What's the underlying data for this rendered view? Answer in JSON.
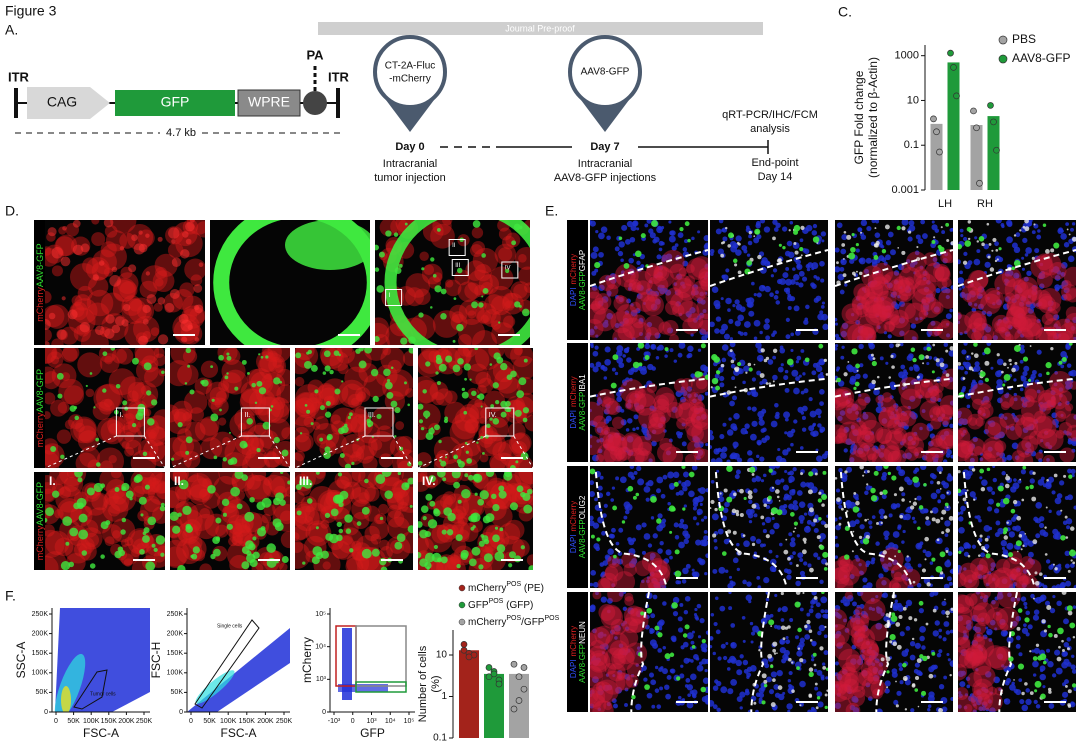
{
  "figure_title": "Figure 3",
  "watermark": "Journal Pre-proof",
  "panel_a": {
    "label": "A.",
    "construct": {
      "itr_left": "ITR",
      "cag": "CAG",
      "gfp": "GFP",
      "wpre": "WPRE",
      "pa": "PA",
      "itr_right": "ITR",
      "size": "4.7 kb"
    },
    "timeline": {
      "tumor_pin": [
        "CT-2A-Fluc",
        "-mCherry"
      ],
      "aav_pin": "AAV8-GFP",
      "day0": "Day 0",
      "day0_desc": [
        "Intracranial",
        "tumor injection"
      ],
      "day7": "Day 7",
      "day7_desc": [
        "Intracranial",
        "AAV8-GFP injections"
      ],
      "analysis": [
        "qRT-PCR/IHC/FCM",
        "analysis"
      ],
      "endpoint": [
        "End-point",
        "Day 14"
      ]
    }
  },
  "panel_c": {
    "label": "C."
  },
  "panel_d": {
    "label": "D.",
    "channel_labels": [
      "mCherry",
      "AAV8-GFP"
    ],
    "roi_labels": [
      "I",
      "II",
      "III",
      "IV"
    ],
    "inset_labels": [
      "I.",
      "II.",
      "III.",
      "IV."
    ]
  },
  "panel_e": {
    "label": "E.",
    "channels": [
      "DAPI",
      "mCherry",
      "AAV8-GFP"
    ],
    "markers": [
      "GFAP",
      "IBA1",
      "OLIG2",
      "NEUN"
    ]
  },
  "panel_f": {
    "label": "F.",
    "flow_plots": [
      {
        "ylabel": "SSC-A",
        "xlabel": "FSC-A",
        "yticks": [
          "250K",
          "200K",
          "150K",
          "100K",
          "50K",
          "0"
        ],
        "xticks": [
          "0",
          "50K",
          "100K",
          "150K",
          "200K",
          "250K"
        ],
        "gate": "Tumor cells"
      },
      {
        "ylabel": "FSC-H",
        "xlabel": "FSC-A",
        "yticks": [
          "250K",
          "200K",
          "150K",
          "100K",
          "50K",
          "0"
        ],
        "xticks": [
          "0",
          "50K",
          "100K",
          "150K",
          "200K",
          "250K"
        ],
        "gate": "Single cells"
      },
      {
        "ylabel": "mCherry",
        "xlabel": "GFP",
        "yticks": [
          "10⁵",
          "10⁴",
          "10³",
          "0"
        ],
        "xticks": [
          "-10³",
          "0",
          "10³",
          "10⁴",
          "10⁵"
        ]
      }
    ]
  },
  "chart_data": [
    {
      "type": "bar",
      "log_y": true,
      "ylabel": [
        "GFP Fold change",
        "(normalized to β-Actin)"
      ],
      "categories": [
        "LH",
        "RH"
      ],
      "ylim": [
        0.001,
        3000
      ],
      "yticks": [
        0.001,
        0.1,
        10,
        1000
      ],
      "legend": "upper right",
      "series": [
        {
          "name": "PBS",
          "color": "#a3a3a3",
          "values": [
            0.9,
            0.8
          ],
          "points": [
            [
              1.5,
              0.4,
              0.05
            ],
            [
              3.4,
              0.6,
              0.002
            ]
          ]
        },
        {
          "name": "AAV8-GFP",
          "color": "#1f9a3a",
          "values": [
            500,
            2
          ],
          "points": [
            [
              1300,
              300,
              16
            ],
            [
              6,
              1.1,
              0.06
            ]
          ]
        }
      ]
    },
    {
      "type": "bar",
      "log_y": true,
      "ylabel": [
        "Number of cells",
        "(%)"
      ],
      "categories": [
        null
      ],
      "ylim": [
        0.1,
        40
      ],
      "yticks": [
        0.1,
        1,
        10
      ],
      "legend": "top",
      "series": [
        {
          "name_parts": [
            "mCherry",
            "POS",
            " (PE)"
          ],
          "color": "#a3231b",
          "values": [
            13
          ],
          "points": [
            [
              13,
              11,
              10,
              18,
              9
            ]
          ]
        },
        {
          "name_parts": [
            "GFP",
            "POS",
            " (GFP)"
          ],
          "color": "#1f9a3a",
          "values": [
            3.5
          ],
          "points": [
            [
              3,
              4,
              2.5,
              5,
              3.5,
              2
            ]
          ]
        },
        {
          "name_parts": [
            "mCherry",
            "POS",
            "/GFP",
            "POS"
          ],
          "color": "#a3a3a3",
          "values": [
            3.5
          ],
          "points": [
            [
              6,
              3,
              1.5,
              0.5,
              0.8,
              5
            ]
          ]
        }
      ]
    }
  ]
}
